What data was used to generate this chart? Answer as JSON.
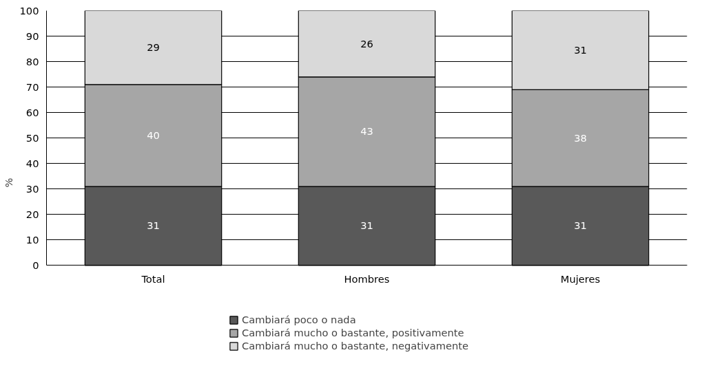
{
  "chart_data": {
    "type": "bar",
    "stacked": true,
    "ylabel": "%",
    "categories": [
      "Total",
      "Hombres",
      "Mujeres"
    ],
    "series": [
      {
        "name": "Cambiará poco o nada",
        "color": "#595959",
        "values": [
          31,
          31,
          31
        ]
      },
      {
        "name": "Cambiará mucho o bastante, positivamente",
        "color": "#a6a6a6",
        "values": [
          40,
          43,
          38
        ]
      },
      {
        "name": "Cambiará mucho o bastante, negativamente",
        "color": "#d9d9d9",
        "values": [
          29,
          26,
          31
        ]
      }
    ],
    "ylim": [
      0,
      100
    ],
    "yticks": [
      0,
      10,
      20,
      30,
      40,
      50,
      60,
      70,
      80,
      90,
      100
    ],
    "grid": "y",
    "legend": "bottom",
    "data_labels": true
  }
}
